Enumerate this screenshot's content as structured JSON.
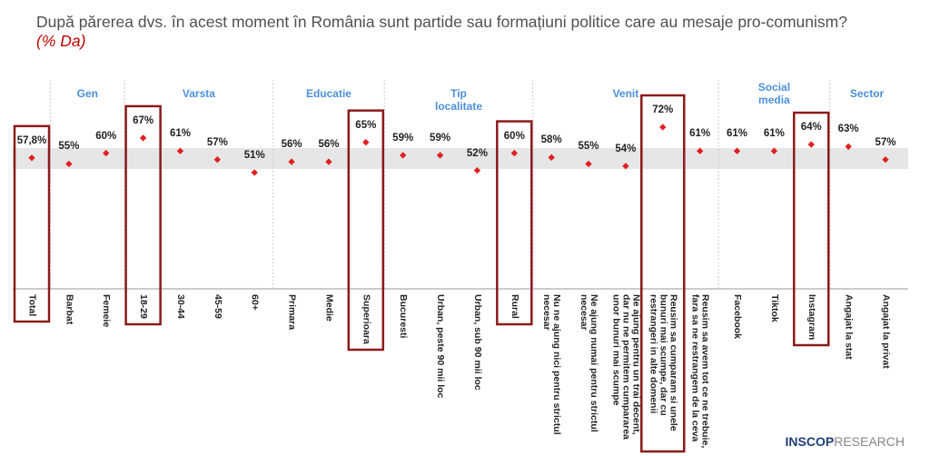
{
  "chart_data": {
    "type": "dot",
    "title": "După părerea dvs. în acest moment în România sunt partide sau formațiuni politice care au mesaje pro-comunism?",
    "subtitle": "(% Da)",
    "categories": [
      "Total",
      "Barbat",
      "Femeie",
      "18-29",
      "30-44",
      "45-59",
      "60+",
      "Primara",
      "Medie",
      "Superioara",
      "Bucuresti",
      "Urban, peste 90 mii loc",
      "Urban, sub 90 mii loc",
      "Rural",
      "Nu ne ajung nici pentru strictul necesar",
      "Ne ajung numai pentru strictul necesar",
      "Ne ajung pentru un trai decent, dar nu ne permitem cumpararea unor bunuri mai scumpe",
      "Reusim sa cumparam si unele bunuri mai scumpe, dar cu restrangeri in alte domenii",
      "Reusim sa avem tot ce ne trebuie, fara sa ne restrangem de la ceva",
      "Facebook",
      "Tiktok",
      "Instagram",
      "Angajat la stat",
      "Angajat la privat"
    ],
    "values": [
      57.8,
      55,
      60,
      67,
      61,
      57,
      51,
      56,
      56,
      65,
      59,
      59,
      52,
      60,
      58,
      55,
      54,
      72,
      61,
      61,
      61,
      64,
      63,
      57
    ],
    "value_labels": [
      "57,8%",
      "55%",
      "60%",
      "67%",
      "61%",
      "57%",
      "51%",
      "56%",
      "56%",
      "65%",
      "59%",
      "59%",
      "52%",
      "60%",
      "58%",
      "55%",
      "54%",
      "72%",
      "61%",
      "61%",
      "61%",
      "64%",
      "63%",
      "57%"
    ],
    "color": "#e02020",
    "groups": [
      {
        "label": "Gen",
        "start": 1,
        "count": 2
      },
      {
        "label": "Varsta",
        "start": 3,
        "count": 4
      },
      {
        "label": "Educatie",
        "start": 7,
        "count": 3
      },
      {
        "label": "Tip localitate",
        "start": 10,
        "count": 4
      },
      {
        "label": "Venit",
        "start": 14,
        "count": 5
      },
      {
        "label": "Social media",
        "start": 19,
        "count": 3
      },
      {
        "label": "Sector",
        "start": 22,
        "count": 2
      }
    ],
    "highlight": [
      0,
      3,
      9,
      13,
      17,
      21
    ],
    "highlight_color": "#8b1a1a"
  },
  "logo": {
    "brand": "INSCOP",
    "suffix": "RESEARCH"
  }
}
